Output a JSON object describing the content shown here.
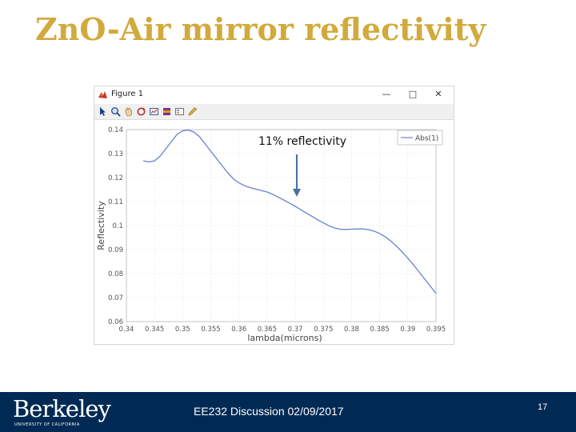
{
  "slide": {
    "title": "ZnO-Air mirror reflectivity"
  },
  "figure_window": {
    "title": "Figure 1",
    "buttons": {
      "minimize": "—",
      "maximize": "□",
      "close": "✕"
    },
    "app_icon": "matlab-icon",
    "toolbar_icons": [
      "select-arrow-icon",
      "zoom-in-icon",
      "pan-hand-icon",
      "rotate-icon",
      "data-cursor-icon",
      "colorbar-icon",
      "legend-icon",
      "pencil-icon"
    ]
  },
  "annotation": {
    "text": "11% reflectivity",
    "arrow_color": "#4a6fa5"
  },
  "chart_data": {
    "type": "line",
    "title": "",
    "xlabel": "lambda(microns)",
    "ylabel": "Reflectivity",
    "xlim": [
      0.34,
      0.395
    ],
    "ylim": [
      0.06,
      0.14
    ],
    "xticks": [
      0.34,
      0.345,
      0.35,
      0.355,
      0.36,
      0.365,
      0.37,
      0.375,
      0.38,
      0.385,
      0.39,
      0.395
    ],
    "xtick_labels": [
      "0.34",
      "0.345",
      "0.35",
      "0.355",
      "0.36",
      "0.365",
      "0.37",
      "0.375",
      "0.38",
      "0.385",
      "0.39",
      "0.395"
    ],
    "yticks": [
      0.06,
      0.07,
      0.08,
      0.09,
      0.1,
      0.11,
      0.12,
      0.13,
      0.14
    ],
    "ytick_labels": [
      "0.06",
      "0.07",
      "0.08",
      "0.09",
      "0.1",
      "0.11",
      "0.12",
      "0.13",
      "0.14"
    ],
    "grid": true,
    "legend_position": "top-right",
    "series": [
      {
        "name": "Abs(1)",
        "color": "#6b7fcf",
        "x": [
          0.343,
          0.344,
          0.345,
          0.346,
          0.347,
          0.348,
          0.349,
          0.35,
          0.351,
          0.352,
          0.353,
          0.354,
          0.355,
          0.356,
          0.357,
          0.358,
          0.359,
          0.36,
          0.361,
          0.362,
          0.363,
          0.364,
          0.365,
          0.366,
          0.367,
          0.368,
          0.369,
          0.37,
          0.371,
          0.372,
          0.373,
          0.374,
          0.375,
          0.376,
          0.377,
          0.378,
          0.379,
          0.38,
          0.381,
          0.382,
          0.383,
          0.384,
          0.385,
          0.386,
          0.387,
          0.388,
          0.389,
          0.39,
          0.391,
          0.392,
          0.393,
          0.394,
          0.395
        ],
        "y": [
          0.127,
          0.1265,
          0.127,
          0.129,
          0.132,
          0.135,
          0.138,
          0.1395,
          0.1398,
          0.139,
          0.137,
          0.134,
          0.131,
          0.128,
          0.125,
          0.122,
          0.1195,
          0.1178,
          0.1166,
          0.1158,
          0.1152,
          0.1146,
          0.114,
          0.113,
          0.1118,
          0.1106,
          0.1093,
          0.108,
          0.1066,
          0.1052,
          0.1038,
          0.1024,
          0.1011,
          0.0999,
          0.099,
          0.0985,
          0.0984,
          0.0985,
          0.0986,
          0.0986,
          0.0983,
          0.0977,
          0.0967,
          0.0953,
          0.0935,
          0.0914,
          0.089,
          0.0864,
          0.0836,
          0.0807,
          0.0777,
          0.0747,
          0.0718
        ]
      }
    ]
  },
  "footer": {
    "logo_text": "Berkeley",
    "logo_subtext": "UNIVERSITY OF CALIFORNIA",
    "center_text": "EE232 Discussion 02/09/2017",
    "page_number": "17"
  }
}
